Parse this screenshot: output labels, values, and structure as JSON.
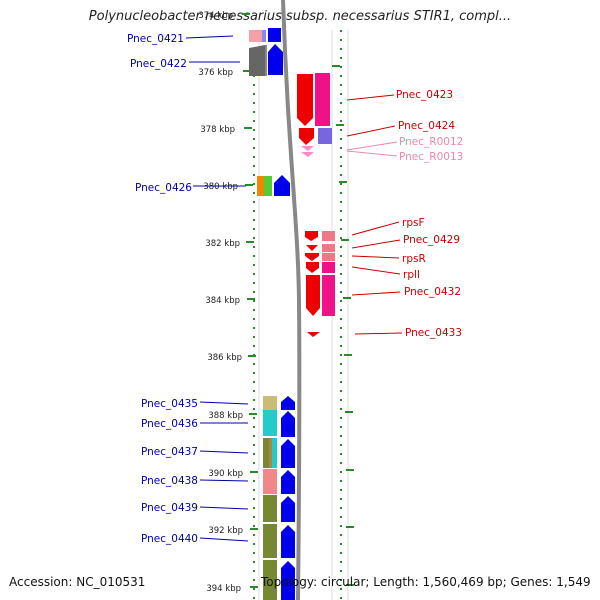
{
  "title": "Polynucleobacter necessarius subsp. necessarius STIR1, compl...",
  "footer": {
    "accession": "Accession: NC_010531",
    "topology": "Topology: circular; Length: 1,560,469 bp; Genes: 1,549"
  },
  "scale": {
    "ticks": [
      "374 kbp",
      "376 kbp",
      "378 kbp",
      "380 kbp",
      "382 kbp",
      "384 kbp",
      "386 kbp",
      "388 kbp",
      "390 kbp",
      "392 kbp",
      "394 kbp"
    ]
  },
  "colors": {
    "left_label": "#0000aa",
    "right_label": "#cc0000",
    "rna_label": "#ee88aa",
    "scale_dash": "#2a8a2a",
    "backbone": "#888888"
  },
  "genes_left": [
    {
      "label": "Pnec_0421"
    },
    {
      "label": "Pnec_0422"
    },
    {
      "label": "Pnec_0426"
    },
    {
      "label": "Pnec_0435"
    },
    {
      "label": "Pnec_0436"
    },
    {
      "label": "Pnec_0437"
    },
    {
      "label": "Pnec_0438"
    },
    {
      "label": "Pnec_0439"
    },
    {
      "label": "Pnec_0440"
    }
  ],
  "genes_right": [
    {
      "label": "Pnec_0423"
    },
    {
      "label": "Pnec_0424"
    },
    {
      "label": "Pnec_R0012"
    },
    {
      "label": "Pnec_R0013"
    },
    {
      "label": "rpsF"
    },
    {
      "label": "Pnec_0429"
    },
    {
      "label": "rpsR"
    },
    {
      "label": "rplI"
    },
    {
      "label": "Pnec_0432"
    },
    {
      "label": "Pnec_0433"
    }
  ]
}
